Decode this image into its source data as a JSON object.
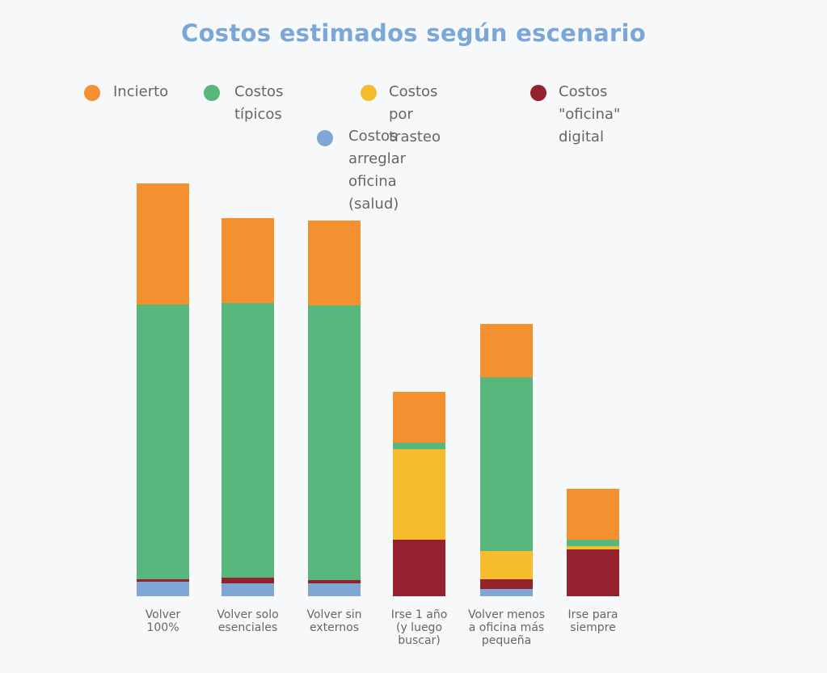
{
  "chart_data": {
    "type": "bar",
    "stacked": true,
    "title": "Costos estimados según escenario",
    "categories": [
      [
        "Volver",
        "100%"
      ],
      [
        "Volver solo",
        "esenciales"
      ],
      [
        "Volver sin",
        "externos"
      ],
      [
        "Irse 1 año",
        "(y luego",
        "buscar)"
      ],
      [
        "Volver menos",
        "a oficina más",
        "pequeña"
      ],
      [
        "Irse para",
        "siempre"
      ]
    ],
    "series": [
      {
        "name": "Costos arreglar oficina (salud)",
        "label_lines": [
          "Costos arreglar oficina",
          "(salud)"
        ],
        "color": "#7fa6d4",
        "values": [
          18,
          16,
          16,
          0,
          9,
          0
        ]
      },
      {
        "name": "Costos \"oficina\" digital",
        "label_lines": [
          "Costos \"oficina\"",
          "digital"
        ],
        "color": "#94212e",
        "values": [
          3,
          7,
          4,
          70,
          12,
          58
        ]
      },
      {
        "name": "Costos por trasteo",
        "label_lines": [
          "Costos por",
          "trasteo"
        ],
        "color": "#f5bd2e",
        "values": [
          0,
          0,
          0,
          112,
          35,
          4
        ]
      },
      {
        "name": "Costos típicos",
        "label_lines": [
          "Costos",
          "típicos"
        ],
        "color": "#57b77c",
        "values": [
          340,
          340,
          340,
          8,
          215,
          8
        ]
      },
      {
        "name": "Incierto",
        "label_lines": [
          "Incierto"
        ],
        "color": "#f49030",
        "values": [
          150,
          105,
          105,
          63,
          66,
          63
        ]
      }
    ],
    "xlabel": "",
    "ylabel": "",
    "ylim": [
      0,
      511
    ],
    "grid": false,
    "legend_position": "top"
  }
}
